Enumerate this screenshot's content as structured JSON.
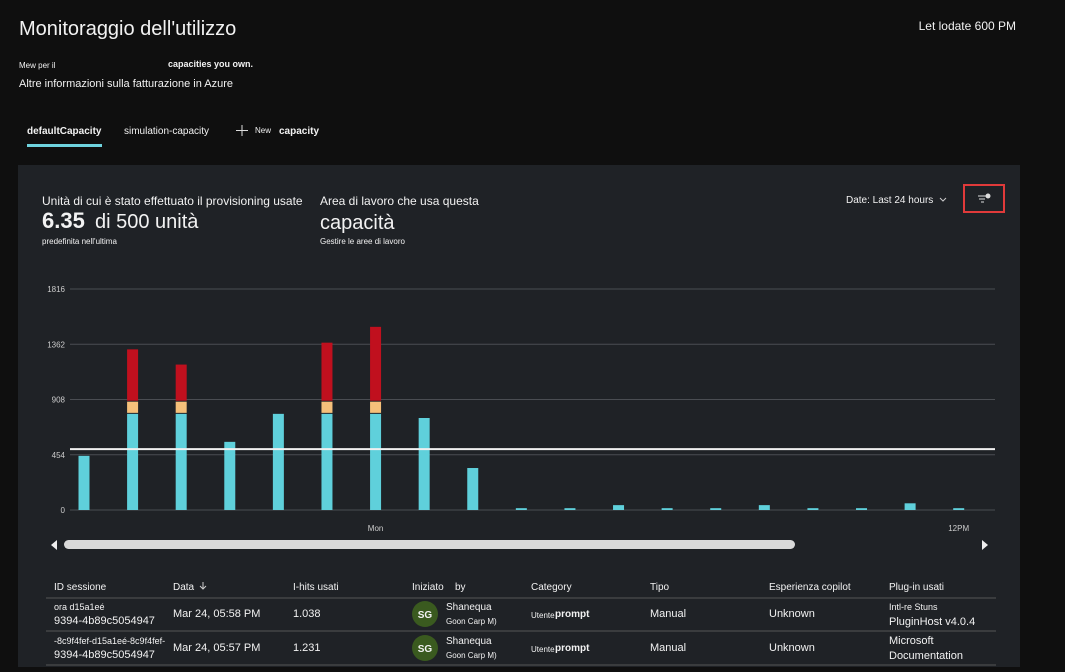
{
  "header": {
    "title": "Monitoraggio dell'utilizzo",
    "updated": "Let lodate 600 PM",
    "intro_a": "Mew per il",
    "intro_b": "capacities you own.",
    "billing_link": "Altre informazioni sulla fatturazione in Azure"
  },
  "tabs": [
    "defaultCapacity",
    "simulation-capacity"
  ],
  "new_tab": {
    "a": "New",
    "b": "capacity"
  },
  "panel": {
    "units_label": "Unità di cui è stato effettuato il provisioning usate",
    "units_value": "6.35",
    "units_of": "di 500 unità",
    "units_note": "predefinita nell'ultima",
    "workspace_label": "Area di lavoro che usa questa",
    "workspace_value": "capacità",
    "workspace_link": "Gestire le aree di lavoro",
    "date_filter": "Date: Last 24 hours"
  },
  "chart_data": {
    "type": "stacked_bar",
    "categories": [
      null,
      null,
      null,
      null,
      null,
      null,
      "Mon",
      null,
      null,
      null,
      null,
      null,
      null,
      null,
      null,
      null,
      null,
      null,
      "12PM"
    ],
    "series": [
      {
        "color": "#5fd0db",
        "values": [
          445,
          790,
          790,
          560,
          790,
          790,
          790,
          756,
          345,
          15,
          15,
          40,
          15,
          15,
          40,
          15,
          15,
          55,
          15
        ]
      },
      {
        "color": "#f5c07a",
        "values": [
          null,
          100,
          100,
          null,
          null,
          100,
          100,
          null,
          null,
          null,
          null,
          null,
          null,
          null,
          null,
          null,
          null,
          null,
          null
        ]
      },
      {
        "color": "#c0101e",
        "values": [
          null,
          430,
          305,
          null,
          null,
          485,
          615,
          null,
          null,
          null,
          null,
          null,
          null,
          null,
          null,
          null,
          null,
          null,
          null
        ]
      }
    ],
    "threshold": 500,
    "ylim": [
      0,
      1816
    ],
    "yticks": [
      0,
      454,
      908,
      1362,
      1816
    ],
    "grid": true
  },
  "table": {
    "headers": [
      "ID sessione",
      "Data",
      "I-hits usati",
      "Iniziato",
      "by",
      "Category",
      "Tipo",
      "Esperienza copilot",
      "Plug-in usati"
    ],
    "rows": [
      {
        "id": [
          "ora d15a1eé",
          "9394-4b89c5054947"
        ],
        "date": "Mar 24, 05:58 PM",
        "hits": "1.038",
        "avatar": "SG",
        "user": "Shanequa",
        "user_sub": "Goon Carp M)",
        "category": [
          "Utente",
          "prompt"
        ],
        "tipo": "Manual",
        "esperienza": "Unknown",
        "plugin": [
          "Intl-re Stuns",
          "PluginHost v4.0.4"
        ]
      },
      {
        "id": [
          "-8c9f4fef-d15a1eé-8c9f4fef-",
          "9394-4b89c5054947"
        ],
        "date": "Mar 24, 05:57 PM",
        "hits": "1.231",
        "avatar": "SG",
        "user": "Shanequa",
        "user_sub": "Goon Carp M)",
        "category": [
          "Utente",
          "prompt"
        ],
        "tipo": "Manual",
        "esperienza": "Unknown",
        "plugin": [
          "Microsoft",
          "Documentation"
        ]
      }
    ]
  }
}
